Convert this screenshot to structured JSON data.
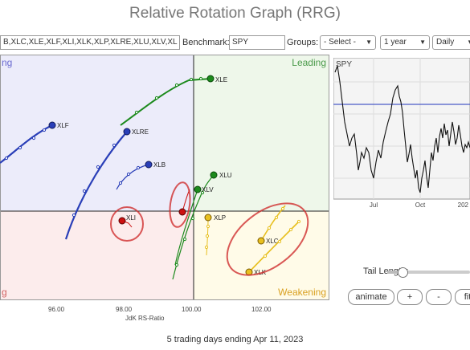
{
  "page": {
    "title": "Relative Rotation Graph (RRG)",
    "footer": "5 trading days ending Apr 11, 2023"
  },
  "controls": {
    "symbols_value": "B,XLC,XLE,XLF,XLI,XLK,XLP,XLRE,XLU,XLV,XL",
    "benchmark_label": "Benchmark:",
    "benchmark_value": "SPY",
    "groups_label": "Groups:",
    "groups_value": "- Select -",
    "period_value": "1 year",
    "frequency_value": "Daily"
  },
  "quadrants": {
    "leading": "Leading",
    "weakening": "Weakening",
    "improving": "ng",
    "lagging": "g"
  },
  "axis": {
    "x_title": "JdK RS-Ratio",
    "x_ticks": [
      "96.00",
      "98.00",
      "100.00",
      "102.00"
    ]
  },
  "spy_chart": {
    "symbol": "SPY",
    "x_labels": [
      "Jul",
      "Oct",
      "202"
    ]
  },
  "tail": {
    "label": "Tail Length:",
    "value_fraction": 0.1
  },
  "buttons": {
    "animate": "animate",
    "plus": "+",
    "minus": "-",
    "fit": "fit"
  },
  "colors": {
    "leading_bg": "#eef7ea",
    "weakening_bg": "#fffbe8",
    "lagging_bg": "#fcecec",
    "improving_bg": "#ececfa",
    "green": "#1c8a1c",
    "blue": "#2a3fb8",
    "red": "#cc1111",
    "yellow": "#e8c020",
    "highlight": "#d03030"
  },
  "securities": [
    {
      "symbol": "XLE",
      "color": "green"
    },
    {
      "symbol": "XLU",
      "color": "green"
    },
    {
      "symbol": "XLV",
      "color": "green"
    },
    {
      "symbol": "XLF",
      "color": "blue"
    },
    {
      "symbol": "XLRE",
      "color": "blue"
    },
    {
      "symbol": "XLB",
      "color": "blue"
    },
    {
      "symbol": "XLI",
      "color": "red"
    },
    {
      "symbol": "XLP",
      "color": "yellow"
    },
    {
      "symbol": "XLC",
      "color": "yellow"
    },
    {
      "symbol": "XLK",
      "color": "yellow"
    }
  ]
}
